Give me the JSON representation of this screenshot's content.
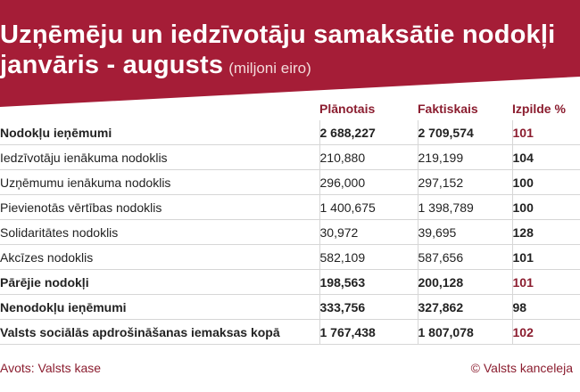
{
  "header": {
    "title_line1": "Uzņēmēju un iedzīvotāju samaksātie nodokļi",
    "title_line2": "janvāris - augusts",
    "unit": "(miljoni eiro)",
    "banner_color": "#a51d37"
  },
  "footer": {
    "source": "Avots: Valsts kase",
    "credit": "© Valsts kanceleja"
  },
  "chart_data": {
    "type": "table",
    "title": "Uzņēmēju un iedzīvotāju samaksātie nodokļi janvāris - augusts",
    "unit": "(miljoni eiro)",
    "columns": [
      "Plānotais",
      "Faktiskais",
      "Izpilde %"
    ],
    "rows": [
      {
        "name": "Nodokļu ieņēmumi",
        "planned": "2 688,227",
        "actual": "2 709,574",
        "pct": "101",
        "bold": true
      },
      {
        "name": "Iedzīvotāju ienākuma nodoklis",
        "planned": "210,880",
        "actual": "219,199",
        "pct": "104",
        "bold": false
      },
      {
        "name": "Uzņēmumu ienākuma nodoklis",
        "planned": "296,000",
        "actual": "297,152",
        "pct": "100",
        "bold": false
      },
      {
        "name": "Pievienotās vērtības nodoklis",
        "planned": "1 400,675",
        "actual": "1 398,789",
        "pct": "100",
        "bold": false
      },
      {
        "name": "Solidaritātes nodoklis",
        "planned": "30,972",
        "actual": "39,695",
        "pct": "128",
        "bold": false
      },
      {
        "name": "Akcīzes nodoklis",
        "planned": "582,109",
        "actual": "587,656",
        "pct": "101",
        "bold": false
      },
      {
        "name": "Pārējie nodokļi",
        "planned": "198,563",
        "actual": "200,128",
        "pct": "101",
        "bold": true
      },
      {
        "name": "Nenodokļu ieņēmumi",
        "planned": "333,756",
        "actual": "327,862",
        "pct": "98",
        "bold": true
      },
      {
        "name": "Valsts sociālās apdrošināšanas iemaksas kopā",
        "planned": "1 767,438",
        "actual": "1 807,078",
        "pct": "102",
        "bold": true
      }
    ]
  }
}
